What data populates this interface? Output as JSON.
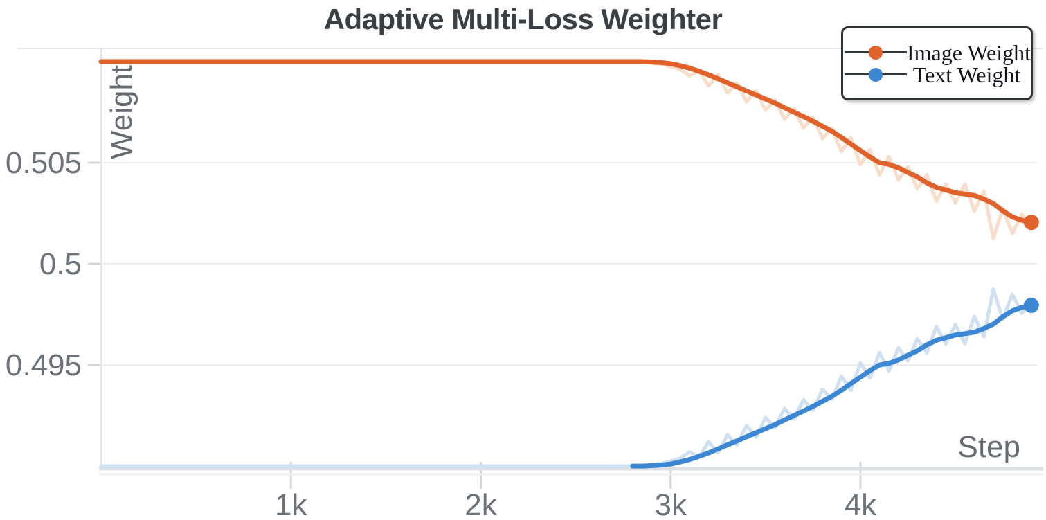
{
  "chart_data": {
    "type": "line",
    "title": "Adaptive Multi-Loss Weighter",
    "xlabel": "Step",
    "ylabel": "Weight",
    "xlim": [
      0,
      4930
    ],
    "ylim": [
      0.4899,
      0.51065
    ],
    "grid": "horizontal",
    "legend_position": "top-right",
    "xticks": [
      {
        "value": 1000,
        "label": "1k"
      },
      {
        "value": 2000,
        "label": "2k"
      },
      {
        "value": 3000,
        "label": "3k"
      },
      {
        "value": 4000,
        "label": "4k"
      }
    ],
    "yticks": [
      {
        "value": 0.505,
        "label": "0.505"
      },
      {
        "value": 0.5,
        "label": "0.5"
      },
      {
        "value": 0.495,
        "label": "0.495"
      }
    ],
    "x": [
      0,
      200,
      400,
      600,
      800,
      1000,
      1200,
      1400,
      1600,
      1800,
      2000,
      2200,
      2400,
      2600,
      2800,
      2850,
      2900,
      2950,
      3000,
      3050,
      3100,
      3150,
      3200,
      3250,
      3300,
      3350,
      3400,
      3450,
      3500,
      3550,
      3600,
      3650,
      3700,
      3750,
      3800,
      3850,
      3900,
      3950,
      4000,
      4050,
      4100,
      4150,
      4200,
      4250,
      4300,
      4350,
      4400,
      4450,
      4500,
      4550,
      4600,
      4650,
      4700,
      4750,
      4800,
      4850,
      4900
    ],
    "series": [
      {
        "name": "Image Weight",
        "color": "#e0612a",
        "raw_color": "#f8ddca",
        "smoothed_visible_from": 0,
        "final_value": 0.502,
        "smoothed": [
          0.51,
          0.51,
          0.51,
          0.51,
          0.51,
          0.51,
          0.51,
          0.51,
          0.51,
          0.51,
          0.51,
          0.51,
          0.51,
          0.51,
          0.51,
          0.51,
          0.50998,
          0.50995,
          0.5099,
          0.5098,
          0.50968,
          0.50952,
          0.50935,
          0.50915,
          0.50895,
          0.50875,
          0.50855,
          0.50835,
          0.50815,
          0.50795,
          0.50772,
          0.5075,
          0.50728,
          0.50705,
          0.5068,
          0.50655,
          0.50625,
          0.50592,
          0.5056,
          0.50528,
          0.505,
          0.50492,
          0.50475,
          0.50452,
          0.5043,
          0.504,
          0.50378,
          0.50365,
          0.50352,
          0.50345,
          0.50338,
          0.5032,
          0.50298,
          0.50262,
          0.50232,
          0.50215,
          0.50205
        ],
        "raw": [
          0.51,
          0.51,
          0.51,
          0.51,
          0.51,
          0.51,
          0.51,
          0.51,
          0.51,
          0.51,
          0.51,
          0.51,
          0.51,
          0.51,
          0.51,
          0.51,
          0.50993,
          0.50988,
          0.50975,
          0.50962,
          0.5093,
          0.50955,
          0.5088,
          0.50935,
          0.50845,
          0.50895,
          0.508,
          0.50858,
          0.5076,
          0.5081,
          0.50715,
          0.50768,
          0.50672,
          0.50725,
          0.5062,
          0.5067,
          0.50555,
          0.50625,
          0.5049,
          0.50565,
          0.5044,
          0.5053,
          0.50415,
          0.5048,
          0.5037,
          0.5044,
          0.5031,
          0.50395,
          0.503,
          0.50395,
          0.5026,
          0.5036,
          0.50125,
          0.50275,
          0.5015,
          0.50245,
          0.5019
        ]
      },
      {
        "name": "Text Weight",
        "color": "#3c87d3",
        "raw_color": "#cfe0f3",
        "smoothed_visible_from": 2800,
        "final_value": 0.498,
        "smoothed": [
          0.49,
          0.49,
          0.49,
          0.49,
          0.49,
          0.49,
          0.49,
          0.49,
          0.49,
          0.49,
          0.49,
          0.49,
          0.49,
          0.49,
          0.49,
          0.49,
          0.49002,
          0.49005,
          0.4901,
          0.4902,
          0.49032,
          0.49048,
          0.49065,
          0.49085,
          0.49105,
          0.49125,
          0.49145,
          0.49165,
          0.49185,
          0.49205,
          0.49228,
          0.4925,
          0.49272,
          0.49295,
          0.4932,
          0.49345,
          0.49375,
          0.49408,
          0.4944,
          0.49472,
          0.495,
          0.49508,
          0.49525,
          0.49548,
          0.4957,
          0.496,
          0.49622,
          0.49635,
          0.49648,
          0.49655,
          0.49662,
          0.4968,
          0.49702,
          0.49738,
          0.49768,
          0.49785,
          0.49795
        ],
        "raw": [
          0.49,
          0.49,
          0.49,
          0.49,
          0.49,
          0.49,
          0.49,
          0.49,
          0.49,
          0.49,
          0.49,
          0.49,
          0.49,
          0.49,
          0.49,
          0.49,
          0.49007,
          0.49012,
          0.49025,
          0.49038,
          0.4907,
          0.49045,
          0.4912,
          0.49065,
          0.49155,
          0.49105,
          0.492,
          0.49142,
          0.4924,
          0.4919,
          0.49285,
          0.49232,
          0.49328,
          0.49275,
          0.4938,
          0.4933,
          0.49445,
          0.49375,
          0.4951,
          0.49435,
          0.4956,
          0.4947,
          0.49585,
          0.4952,
          0.4963,
          0.4956,
          0.4969,
          0.49605,
          0.497,
          0.49605,
          0.4974,
          0.4964,
          0.49875,
          0.49725,
          0.4985,
          0.49755,
          0.4981
        ]
      }
    ]
  },
  "legend": {
    "items": [
      {
        "label": "Image Weight"
      },
      {
        "label": "Text Weight"
      }
    ]
  }
}
